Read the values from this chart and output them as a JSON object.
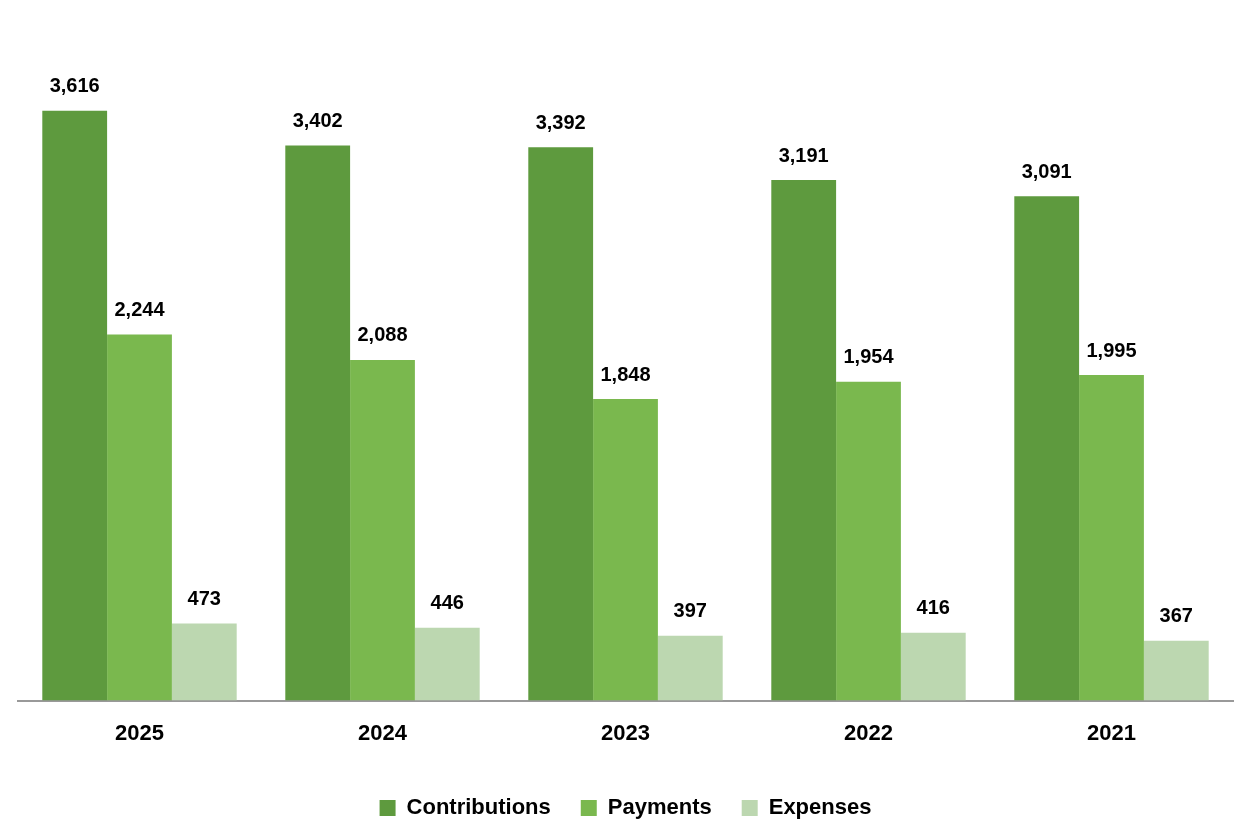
{
  "chart_data": {
    "type": "bar",
    "categories": [
      "2025",
      "2024",
      "2023",
      "2022",
      "2021"
    ],
    "series": [
      {
        "name": "Contributions",
        "color": "#5e9a3e",
        "values": [
          3616,
          3402,
          3392,
          3191,
          3091
        ],
        "value_labels": [
          "3,616",
          "3,402",
          "3,392",
          "3,191",
          "3,091"
        ]
      },
      {
        "name": "Payments",
        "color": "#7ab84e",
        "values": [
          2244,
          2088,
          1848,
          1954,
          1995
        ],
        "value_labels": [
          "2,244",
          "2,088",
          "1,848",
          "1,954",
          "1,995"
        ]
      },
      {
        "name": "Expenses",
        "color": "#bcd7b0",
        "values": [
          473,
          446,
          397,
          416,
          367
        ],
        "value_labels": [
          "473",
          "446",
          "397",
          "416",
          "367"
        ]
      }
    ],
    "legend": "bottom",
    "grid": false
  }
}
